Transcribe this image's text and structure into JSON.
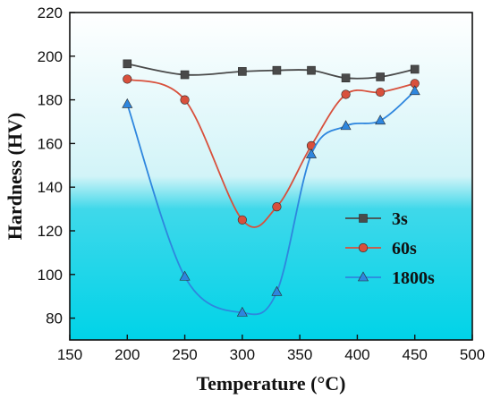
{
  "chart_data": {
    "type": "line",
    "xlabel": "Temperature (°C)",
    "ylabel": "Hardness (HV)",
    "xlim": [
      150,
      500
    ],
    "ylim": [
      70,
      220
    ],
    "xticks": [
      150,
      200,
      250,
      300,
      350,
      400,
      450,
      500
    ],
    "yticks": [
      80,
      100,
      120,
      140,
      160,
      180,
      200,
      220
    ],
    "x": [
      200,
      250,
      300,
      330,
      360,
      390,
      420,
      450
    ],
    "legend_position": "center-right",
    "grid": false,
    "series": [
      {
        "name": "3s",
        "marker": "square",
        "color": "#4a4a4a",
        "values": [
          196.5,
          191.5,
          193,
          193.5,
          193.5,
          190,
          190.5,
          194
        ]
      },
      {
        "name": "60s",
        "marker": "circle",
        "color": "#d8503c",
        "values": [
          189.5,
          180,
          125,
          131,
          159,
          182.5,
          183.5,
          187.5
        ]
      },
      {
        "name": "1800s",
        "marker": "triangle",
        "color": "#2e86de",
        "values": [
          178,
          99,
          82.5,
          92,
          155,
          168,
          170.5,
          184
        ]
      }
    ]
  }
}
